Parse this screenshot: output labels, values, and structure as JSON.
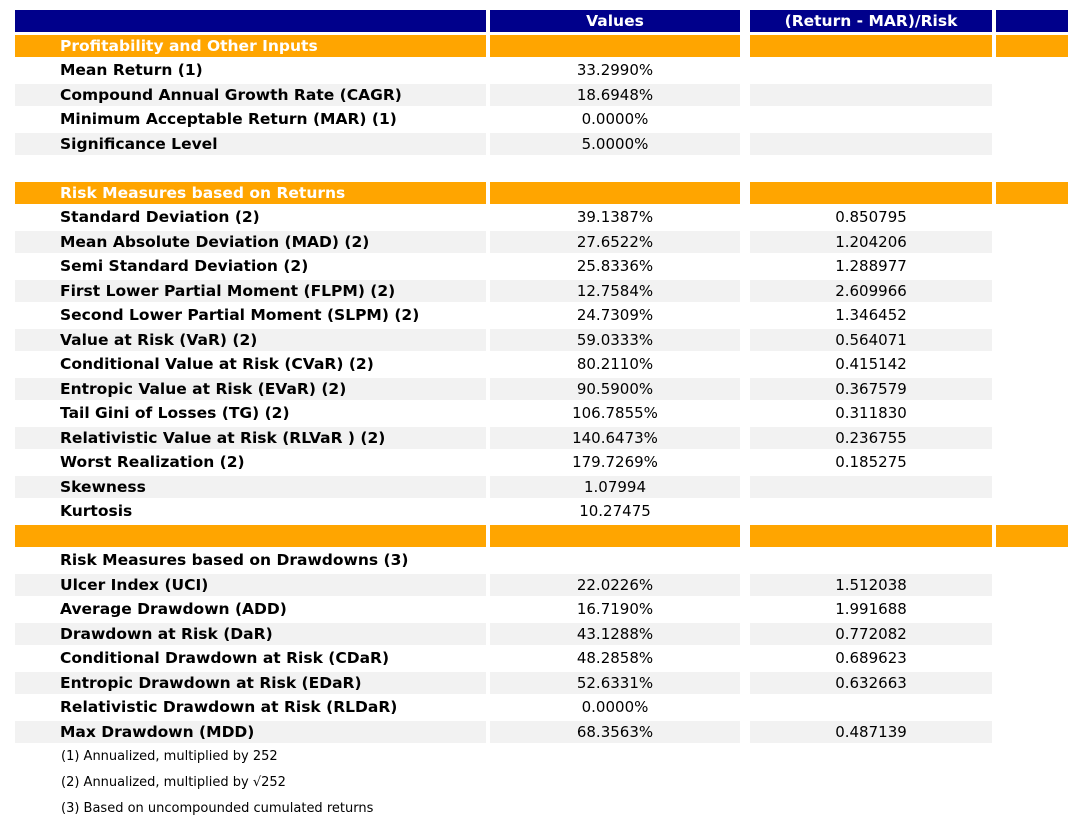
{
  "columns": {
    "metric": "",
    "values": "Values",
    "risk": "(Return - MAR)/Risk"
  },
  "colors": {
    "header_bg": "#00008b",
    "section_bg": "#ffa500",
    "zebra_bg": "#f2f2f2",
    "header_text": "#ffffff",
    "body_text": "#000000"
  },
  "rows": [
    {
      "kind": "section",
      "shaded": false,
      "label": "Profitability and Other Inputs",
      "value": "",
      "risk": ""
    },
    {
      "kind": "data",
      "shaded": false,
      "label": "Mean Return (1)",
      "value": "33.2990%",
      "risk": ""
    },
    {
      "kind": "data",
      "shaded": true,
      "label": "Compound Annual Growth Rate (CAGR)",
      "value": "18.6948%",
      "risk": ""
    },
    {
      "kind": "data",
      "shaded": false,
      "label": "Minimum Acceptable Return (MAR) (1)",
      "value": "0.0000%",
      "risk": ""
    },
    {
      "kind": "data",
      "shaded": true,
      "label": "Significance Level",
      "value": "5.0000%",
      "risk": ""
    },
    {
      "kind": "spacer",
      "shaded": false,
      "label": "",
      "value": "",
      "risk": ""
    },
    {
      "kind": "section",
      "shaded": false,
      "label": "Risk Measures based on Returns",
      "value": "",
      "risk": ""
    },
    {
      "kind": "data",
      "shaded": false,
      "label": "Standard Deviation (2)",
      "value": "39.1387%",
      "risk": "0.850795"
    },
    {
      "kind": "data",
      "shaded": true,
      "label": "Mean Absolute Deviation (MAD) (2)",
      "value": "27.6522%",
      "risk": "1.204206"
    },
    {
      "kind": "data",
      "shaded": false,
      "label": "Semi Standard Deviation (2)",
      "value": "25.8336%",
      "risk": "1.288977"
    },
    {
      "kind": "data",
      "shaded": true,
      "label": "First Lower Partial Moment (FLPM) (2)",
      "value": "12.7584%",
      "risk": "2.609966"
    },
    {
      "kind": "data",
      "shaded": false,
      "label": "Second Lower Partial Moment (SLPM) (2)",
      "value": "24.7309%",
      "risk": "1.346452"
    },
    {
      "kind": "data",
      "shaded": true,
      "label": "Value at Risk (VaR) (2)",
      "value": "59.0333%",
      "risk": "0.564071"
    },
    {
      "kind": "data",
      "shaded": false,
      "label": "Conditional Value at Risk (CVaR) (2)",
      "value": "80.2110%",
      "risk": "0.415142"
    },
    {
      "kind": "data",
      "shaded": true,
      "label": "Entropic Value at Risk (EVaR) (2)",
      "value": "90.5900%",
      "risk": "0.367579"
    },
    {
      "kind": "data",
      "shaded": false,
      "label": "Tail Gini of Losses (TG) (2)",
      "value": "106.7855%",
      "risk": "0.311830"
    },
    {
      "kind": "data",
      "shaded": true,
      "label": "Relativistic Value at Risk (RLVaR ) (2)",
      "value": "140.6473%",
      "risk": "0.236755"
    },
    {
      "kind": "data",
      "shaded": false,
      "label": "Worst Realization (2)",
      "value": "179.7269%",
      "risk": "0.185275"
    },
    {
      "kind": "data",
      "shaded": true,
      "label": "Skewness",
      "value": "1.07994",
      "risk": ""
    },
    {
      "kind": "data",
      "shaded": false,
      "label": "Kurtosis",
      "value": "10.27475",
      "risk": ""
    },
    {
      "kind": "section",
      "shaded": false,
      "label": "",
      "value": "",
      "risk": ""
    },
    {
      "kind": "data",
      "shaded": false,
      "label": "Risk Measures based on Drawdowns (3)",
      "value": "",
      "risk": ""
    },
    {
      "kind": "data",
      "shaded": true,
      "label": "Ulcer Index (UCI)",
      "value": "22.0226%",
      "risk": "1.512038"
    },
    {
      "kind": "data",
      "shaded": false,
      "label": "Average Drawdown (ADD)",
      "value": "16.7190%",
      "risk": "1.991688"
    },
    {
      "kind": "data",
      "shaded": true,
      "label": "Drawdown at Risk (DaR)",
      "value": "43.1288%",
      "risk": "0.772082"
    },
    {
      "kind": "data",
      "shaded": false,
      "label": "Conditional Drawdown at Risk (CDaR)",
      "value": "48.2858%",
      "risk": "0.689623"
    },
    {
      "kind": "data",
      "shaded": true,
      "label": "Entropic Drawdown at Risk (EDaR)",
      "value": "52.6331%",
      "risk": "0.632663"
    },
    {
      "kind": "data",
      "shaded": false,
      "label": "Relativistic Drawdown at Risk (RLDaR)",
      "value": "0.0000%",
      "risk": ""
    },
    {
      "kind": "data",
      "shaded": true,
      "label": "Max Drawdown (MDD)",
      "value": "68.3563%",
      "risk": "0.487139"
    }
  ],
  "footnotes": [
    "(1) Annualized, multiplied by 252",
    "(2) Annualized, multiplied by √252",
    "(3) Based on uncompounded cumulated returns"
  ],
  "chart_data": {
    "type": "table",
    "title": "Portfolio profitability and risk measures",
    "columns": [
      "",
      "Values",
      "(Return - MAR)/Risk"
    ],
    "sections": [
      {
        "title": "Profitability and Other Inputs",
        "rows": [
          [
            "Mean Return (1)",
            "33.2990%",
            ""
          ],
          [
            "Compound Annual Growth Rate (CAGR)",
            "18.6948%",
            ""
          ],
          [
            "Minimum Acceptable Return (MAR) (1)",
            "0.0000%",
            ""
          ],
          [
            "Significance Level",
            "5.0000%",
            ""
          ]
        ]
      },
      {
        "title": "Risk Measures based on Returns",
        "rows": [
          [
            "Standard Deviation (2)",
            "39.1387%",
            "0.850795"
          ],
          [
            "Mean Absolute Deviation (MAD) (2)",
            "27.6522%",
            "1.204206"
          ],
          [
            "Semi Standard Deviation (2)",
            "25.8336%",
            "1.288977"
          ],
          [
            "First Lower Partial Moment (FLPM) (2)",
            "12.7584%",
            "2.609966"
          ],
          [
            "Second Lower Partial Moment (SLPM) (2)",
            "24.7309%",
            "1.346452"
          ],
          [
            "Value at Risk (VaR) (2)",
            "59.0333%",
            "0.564071"
          ],
          [
            "Conditional Value at Risk (CVaR) (2)",
            "80.2110%",
            "0.415142"
          ],
          [
            "Entropic Value at Risk (EVaR) (2)",
            "90.5900%",
            "0.367579"
          ],
          [
            "Tail Gini of Losses (TG) (2)",
            "106.7855%",
            "0.311830"
          ],
          [
            "Relativistic Value at Risk (RLVaR ) (2)",
            "140.6473%",
            "0.236755"
          ],
          [
            "Worst Realization (2)",
            "179.7269%",
            "0.185275"
          ],
          [
            "Skewness",
            "1.07994",
            ""
          ],
          [
            "Kurtosis",
            "10.27475",
            ""
          ]
        ]
      },
      {
        "title": "Risk Measures based on Drawdowns (3)",
        "rows": [
          [
            "Ulcer Index (UCI)",
            "22.0226%",
            "1.512038"
          ],
          [
            "Average Drawdown (ADD)",
            "16.7190%",
            "1.991688"
          ],
          [
            "Drawdown at Risk (DaR)",
            "43.1288%",
            "0.772082"
          ],
          [
            "Conditional Drawdown at Risk (CDaR)",
            "48.2858%",
            "0.689623"
          ],
          [
            "Entropic Drawdown at Risk (EDaR)",
            "52.6331%",
            "0.632663"
          ],
          [
            "Relativistic Drawdown at Risk (RLDaR)",
            "0.0000%",
            ""
          ],
          [
            "Max Drawdown (MDD)",
            "68.3563%",
            "0.487139"
          ]
        ]
      }
    ],
    "footnotes": [
      "(1) Annualized, multiplied by 252",
      "(2) Annualized, multiplied by √252",
      "(3) Based on uncompounded cumulated returns"
    ],
    "legend_position": "none",
    "grid": false
  }
}
